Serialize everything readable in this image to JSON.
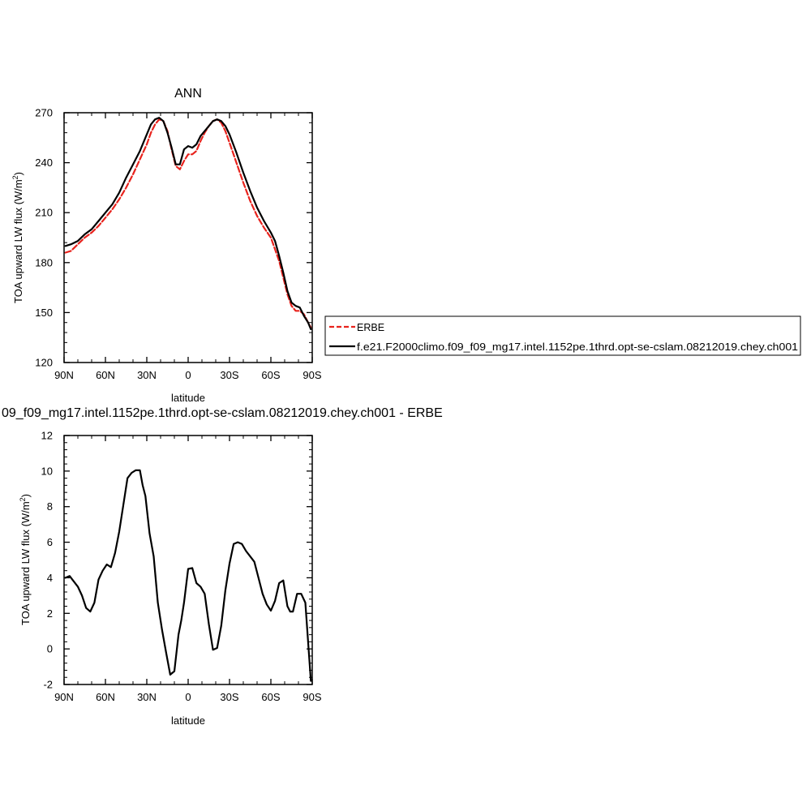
{
  "chart_data": [
    {
      "type": "line",
      "title": "ANN",
      "xlabel": "latitude",
      "ylabel": "TOA upward LW flux (W/m",
      "ylabel_sup": "2",
      "ylabel_close": ")",
      "x_ticks": [
        -90,
        -60,
        -30,
        0,
        30,
        60,
        90
      ],
      "x_tick_labels": [
        "90N",
        "60N",
        "30N",
        "0",
        "30S",
        "60S",
        "90S"
      ],
      "xlim": [
        -90,
        90
      ],
      "ylim": [
        120,
        270
      ],
      "y_ticks": [
        120,
        150,
        180,
        210,
        240,
        270
      ],
      "y_tick_labels": [
        "120",
        "150",
        "180",
        "210",
        "240",
        "270"
      ],
      "legend_position": "right",
      "series": [
        {
          "name": "ERBE",
          "color": "#e8231d",
          "dash": true,
          "x": [
            -89,
            -85,
            -80,
            -75,
            -70,
            -65,
            -60,
            -55,
            -50,
            -45,
            -40,
            -35,
            -30,
            -27,
            -24,
            -21,
            -18,
            -15,
            -12,
            -9,
            -6,
            -3,
            0,
            3,
            6,
            9,
            12,
            15,
            18,
            21,
            24,
            27,
            30,
            35,
            40,
            45,
            50,
            55,
            60,
            63,
            66,
            69,
            72,
            75,
            78,
            81,
            84,
            87,
            89
          ],
          "values": [
            186,
            187,
            191,
            195,
            198,
            202,
            207,
            212,
            218,
            225,
            233,
            242,
            251,
            258,
            263,
            266,
            265,
            259,
            248,
            238,
            236,
            241,
            245,
            245,
            247,
            253,
            258,
            262,
            265,
            266,
            264,
            259,
            252,
            240,
            228,
            217,
            208,
            201,
            195,
            188,
            181,
            171,
            161,
            154,
            151,
            151,
            149,
            144,
            141
          ]
        },
        {
          "name": "f.e21.F2000climo.f09_f09_mg17.intel.1152pe.1thrd.opt-se-cslam.08212019.chey.ch001",
          "color": "#000000",
          "dash": false,
          "x": [
            -89,
            -85,
            -80,
            -75,
            -70,
            -65,
            -60,
            -55,
            -50,
            -45,
            -40,
            -35,
            -30,
            -27,
            -24,
            -21,
            -18,
            -15,
            -12,
            -9,
            -6,
            -3,
            0,
            3,
            6,
            9,
            12,
            15,
            18,
            21,
            24,
            27,
            30,
            35,
            40,
            45,
            50,
            55,
            60,
            63,
            66,
            69,
            72,
            75,
            78,
            81,
            84,
            87,
            89
          ],
          "values": [
            190,
            191,
            193,
            197,
            200,
            205,
            210,
            215,
            222,
            231,
            239,
            247,
            257,
            263,
            266,
            267,
            265,
            258,
            249,
            239,
            239,
            248,
            250,
            249,
            251,
            256,
            259,
            262,
            265,
            266,
            265,
            262,
            257,
            246,
            234,
            223,
            213,
            205,
            198,
            193,
            184,
            174,
            163,
            156,
            154,
            153,
            148,
            144,
            140
          ]
        }
      ]
    },
    {
      "type": "line",
      "title": "09_f09_mg17.intel.1152pe.1thrd.opt-se-cslam.08212019.chey.ch001 - ERBE",
      "xlabel": "latitude",
      "ylabel": "TOA upward LW flux (W/m",
      "ylabel_sup": "2",
      "ylabel_close": ")",
      "x_ticks": [
        -90,
        -60,
        -30,
        0,
        30,
        60,
        90
      ],
      "x_tick_labels": [
        "90N",
        "60N",
        "30N",
        "0",
        "30S",
        "60S",
        "90S"
      ],
      "xlim": [
        -90,
        90
      ],
      "ylim": [
        -2,
        12
      ],
      "y_ticks": [
        -2,
        0,
        2,
        4,
        6,
        8,
        10,
        12
      ],
      "y_tick_labels": [
        "-2",
        "0",
        "2",
        "4",
        "6",
        "8",
        "10",
        "12"
      ],
      "series": [
        {
          "name": "",
          "color": "#000000",
          "dash": false,
          "x": [
            -89,
            -86,
            -83,
            -80,
            -77,
            -74,
            -71,
            -68,
            -65,
            -62,
            -59,
            -56,
            -53,
            -50,
            -47,
            -44,
            -41,
            -38,
            -35,
            -33,
            -31,
            -28,
            -25,
            -22,
            -19,
            -16,
            -13,
            -10,
            -7,
            -5,
            -3,
            0,
            3,
            6,
            9,
            12,
            15,
            18,
            21,
            24,
            27,
            30,
            33,
            36,
            39,
            42,
            45,
            48,
            51,
            54,
            57,
            60,
            63,
            66,
            69,
            72,
            74,
            76,
            79,
            82,
            85,
            89
          ],
          "values": [
            4.0,
            4.1,
            3.8,
            3.5,
            3.0,
            2.3,
            2.1,
            2.6,
            3.9,
            4.4,
            4.75,
            4.6,
            5.4,
            6.6,
            8.1,
            9.6,
            9.9,
            10.05,
            10.05,
            9.2,
            8.6,
            6.5,
            5.2,
            2.6,
            1.1,
            -0.2,
            -1.45,
            -1.25,
            0.8,
            1.6,
            2.6,
            4.5,
            4.55,
            3.7,
            3.5,
            3.1,
            1.4,
            -0.05,
            0.05,
            1.3,
            3.3,
            4.8,
            5.9,
            6.0,
            5.9,
            5.5,
            5.2,
            4.9,
            4.0,
            3.1,
            2.5,
            2.15,
            2.7,
            3.7,
            3.85,
            2.4,
            2.1,
            2.1,
            3.1,
            3.1,
            2.6,
            -1.8
          ]
        }
      ]
    }
  ]
}
